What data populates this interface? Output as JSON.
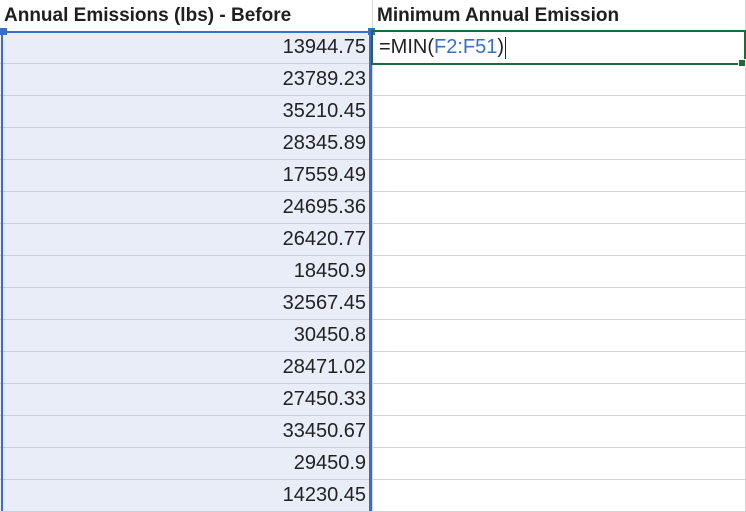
{
  "columns": {
    "f_header": "Annual Emissions (lbs) - Before",
    "g_header": "Minimum Annual Emission"
  },
  "active_cell": {
    "formula_prefix": "=MIN(",
    "formula_ref": "F2:F51",
    "formula_suffix": ")"
  },
  "rows": [
    "13944.75",
    "23789.23",
    "35210.45",
    "28345.89",
    "17559.49",
    "24695.36",
    "26420.77",
    "18450.9",
    "32567.45",
    "30450.8",
    "28471.02",
    "27450.33",
    "33450.67",
    "29450.9",
    "14230.45"
  ],
  "colors": {
    "range_border": "#3a6fc7",
    "active_border": "#1e6b3a",
    "range_fill": "#e8edf8"
  }
}
